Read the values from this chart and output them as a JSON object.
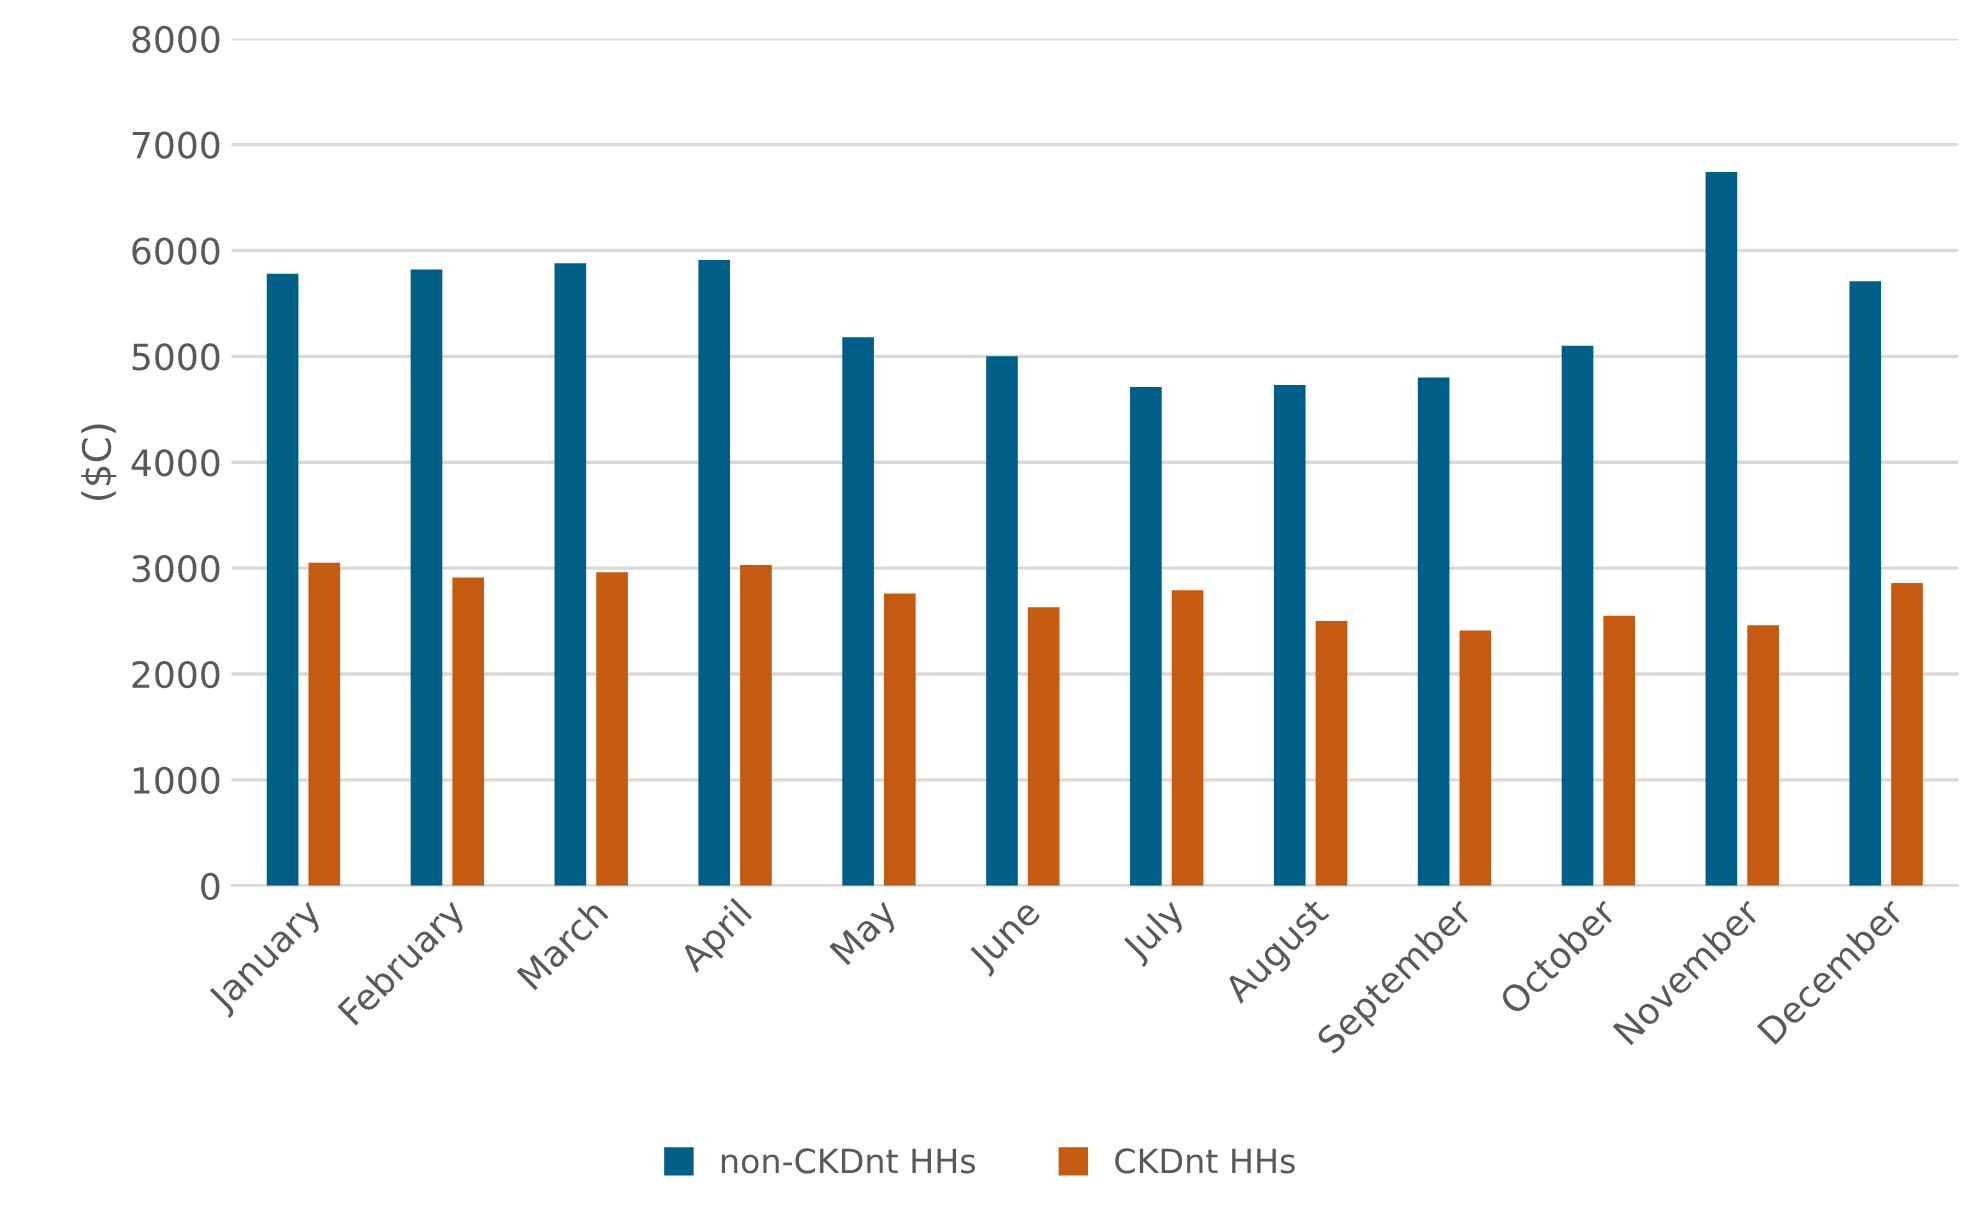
{
  "chart_data": {
    "type": "bar",
    "ylabel": "($C)",
    "categories": [
      "January",
      "February",
      "March",
      "April",
      "May",
      "June",
      "July",
      "August",
      "September",
      "October",
      "November",
      "December"
    ],
    "series": [
      {
        "name": "non-CKDnt HHs",
        "color": "#005f87",
        "values": [
          5780,
          5820,
          5880,
          5910,
          5180,
          5000,
          4710,
          4730,
          4800,
          5100,
          6740,
          5710
        ]
      },
      {
        "name": "CKDnt HHs",
        "color": "#c55a11",
        "values": [
          3050,
          2910,
          2960,
          3030,
          2760,
          2630,
          2790,
          2500,
          2410,
          2550,
          2460,
          2860
        ]
      }
    ],
    "ylim": [
      0,
      8000
    ],
    "yticks": [
      0,
      1000,
      2000,
      3000,
      4000,
      5000,
      6000,
      7000,
      8000
    ],
    "grid": "y",
    "legend": "bottom"
  }
}
